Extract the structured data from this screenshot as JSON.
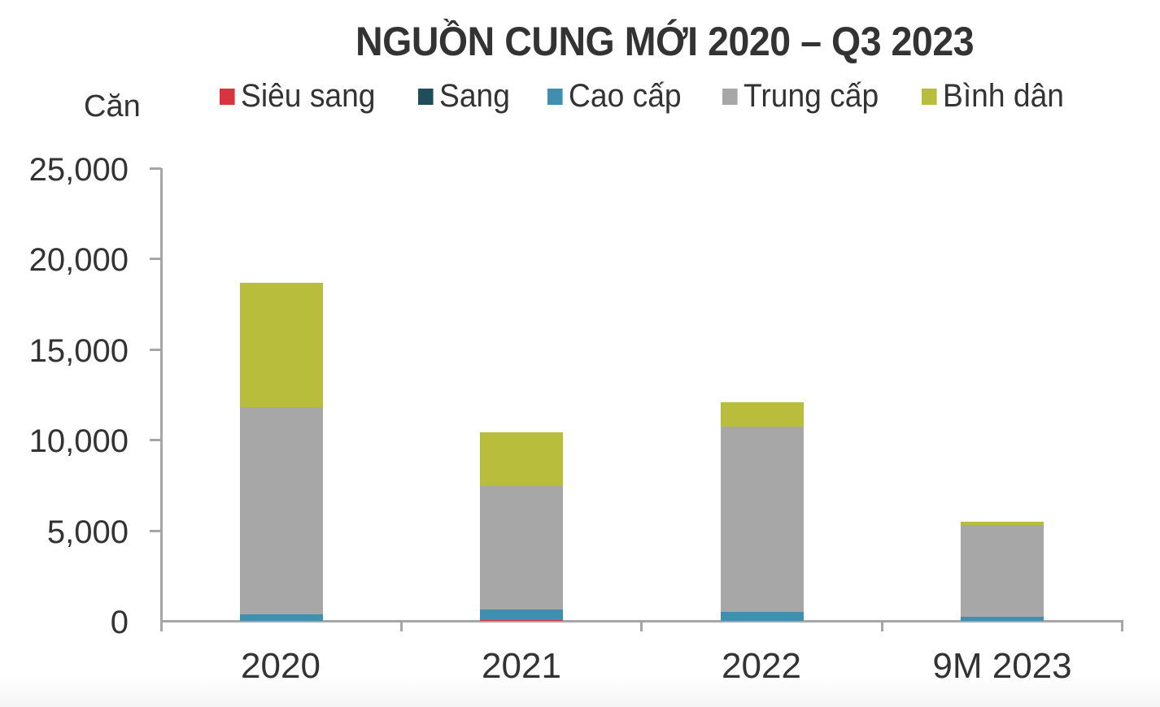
{
  "chart_data": {
    "type": "bar",
    "stacked": true,
    "title": "NGUỒN CUNG MỚI 2020 – Q3 2023",
    "ylabel": "Căn",
    "xlabel": "",
    "ylim": [
      0,
      25000
    ],
    "yticks": [
      "25,000",
      "20,000",
      "15,000",
      "10,000",
      "5,000",
      "0"
    ],
    "categories": [
      "2020",
      "2021",
      "2022",
      "9M 2023"
    ],
    "series": [
      {
        "name": "Siêu sang",
        "color": "#d9333f",
        "values": [
          0,
          60,
          0,
          0
        ]
      },
      {
        "name": "Sang",
        "color": "#1f4e5a",
        "values": [
          0,
          0,
          0,
          0
        ]
      },
      {
        "name": "Cao cấp",
        "color": "#3f8fb0",
        "values": [
          360,
          570,
          490,
          220
        ]
      },
      {
        "name": "Trung cấp",
        "color": "#a6a7a6",
        "values": [
          11440,
          6820,
          10240,
          5080
        ]
      },
      {
        "name": "Bình dân",
        "color": "#b8bd3c",
        "values": [
          6870,
          2960,
          1340,
          180
        ]
      }
    ],
    "totals": [
      18670,
      10410,
      12070,
      5480
    ],
    "grid": false,
    "legend_position": "top"
  },
  "title": "NGUỒN CUNG MỚI 2020 – Q3 2023",
  "unit": "Căn",
  "legend": [
    {
      "label": "Siêu sang",
      "color": "#d9333f"
    },
    {
      "label": "Sang",
      "color": "#1f4e5a"
    },
    {
      "label": "Cao cấp",
      "color": "#3f8fb0"
    },
    {
      "label": "Trung cấp",
      "color": "#a6a7a6"
    },
    {
      "label": "Bình dân",
      "color": "#b8bd3c"
    }
  ],
  "yticks": [
    "25,000",
    "20,000",
    "15,000",
    "10,000",
    "5,000",
    "0"
  ],
  "xlabels": [
    "2020",
    "2021",
    "2022",
    "9M 2023"
  ]
}
